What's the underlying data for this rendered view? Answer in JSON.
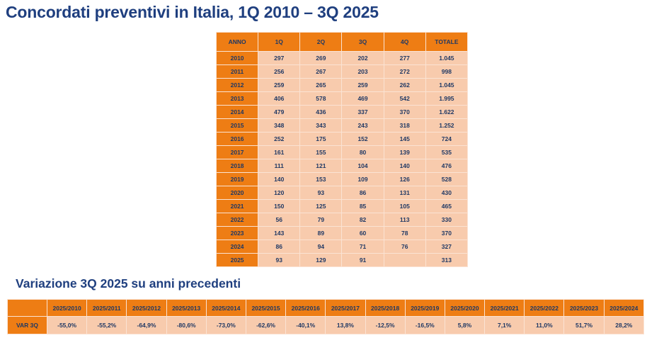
{
  "title": "Concordati preventivi in Italia, 1Q 2010 – 3Q 2025",
  "subtitle": "Variazione 3Q 2025 su anni precedenti",
  "main_table": {
    "headers": [
      "ANNO",
      "1Q",
      "2Q",
      "3Q",
      "4Q",
      "TOTALE"
    ],
    "rows": [
      [
        "2010",
        "297",
        "269",
        "202",
        "277",
        "1.045"
      ],
      [
        "2011",
        "256",
        "267",
        "203",
        "272",
        "998"
      ],
      [
        "2012",
        "259",
        "265",
        "259",
        "262",
        "1.045"
      ],
      [
        "2013",
        "406",
        "578",
        "469",
        "542",
        "1.995"
      ],
      [
        "2014",
        "479",
        "436",
        "337",
        "370",
        "1.622"
      ],
      [
        "2015",
        "348",
        "343",
        "243",
        "318",
        "1.252"
      ],
      [
        "2016",
        "252",
        "175",
        "152",
        "145",
        "724"
      ],
      [
        "2017",
        "161",
        "155",
        "80",
        "139",
        "535"
      ],
      [
        "2018",
        "111",
        "121",
        "104",
        "140",
        "476"
      ],
      [
        "2019",
        "140",
        "153",
        "109",
        "126",
        "528"
      ],
      [
        "2020",
        "120",
        "93",
        "86",
        "131",
        "430"
      ],
      [
        "2021",
        "150",
        "125",
        "85",
        "105",
        "465"
      ],
      [
        "2022",
        "56",
        "79",
        "82",
        "113",
        "330"
      ],
      [
        "2023",
        "143",
        "89",
        "60",
        "78",
        "370"
      ],
      [
        "2024",
        "86",
        "94",
        "71",
        "76",
        "327"
      ],
      [
        "2025",
        "93",
        "129",
        "91",
        "",
        "313"
      ]
    ]
  },
  "var_table": {
    "corner": "",
    "headers": [
      "2025/2010",
      "2025/2011",
      "2025/2012",
      "2025/2013",
      "2025/2014",
      "2025/2015",
      "2025/2016",
      "2025/2017",
      "2025/2018",
      "2025/2019",
      "2025/2020",
      "2025/2021",
      "2025/2022",
      "2025/2023",
      "2025/2024"
    ],
    "row_label": "VAR 3Q",
    "values": [
      "-55,0%",
      "-55,2%",
      "-64,9%",
      "-80,6%",
      "-73,0%",
      "-62,6%",
      "-40,1%",
      "13,8%",
      "-12,5%",
      "-16,5%",
      "5,8%",
      "7,1%",
      "11,0%",
      "51,7%",
      "28,2%"
    ]
  },
  "colors": {
    "header_orange": "#ee7d14",
    "cell_peach": "#f8cbad",
    "text_navy": "#1f3864"
  }
}
